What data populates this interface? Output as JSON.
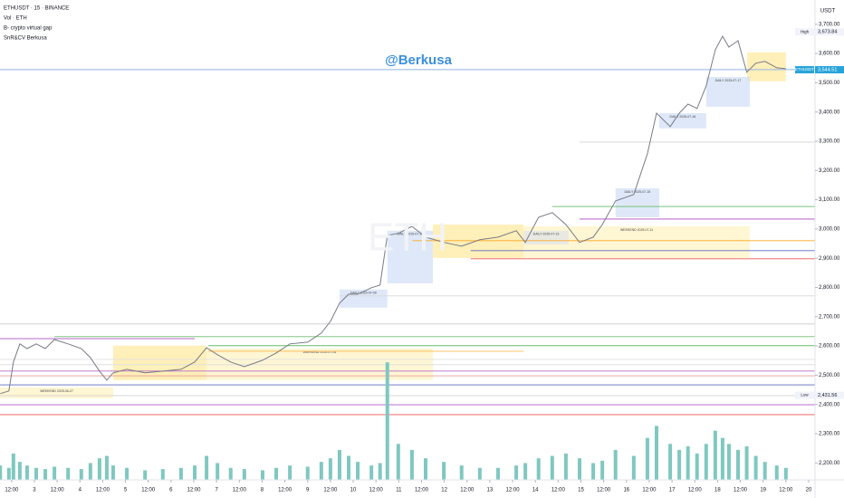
{
  "chart_data": {
    "type": "line",
    "title": "ETHUSDT · 15 · BINANCE",
    "indicators": [
      "Vol · ETH",
      "B- crypto virtual gap",
      "SnR&CV Berkusa"
    ],
    "watermark": "@Berkusa",
    "symbol_watermark": "ETH",
    "y_axis_label": "USDT",
    "xlim": [
      2.245,
      20.14
    ],
    "ylim": [
      2142,
      3783
    ],
    "y2lim": [
      0,
      400
    ],
    "xticks": [
      {
        "value": 2.5,
        "label": "12:00"
      },
      3,
      {
        "value": 3.5,
        "label": "12:00"
      },
      4,
      {
        "value": 4.5,
        "label": "12:00"
      },
      5,
      {
        "value": 5.5,
        "label": "12:00"
      },
      6,
      {
        "value": 6.5,
        "label": "12:00"
      },
      7,
      {
        "value": 7.5,
        "label": "12:00"
      },
      8,
      {
        "value": 8.5,
        "label": "12:00"
      },
      9,
      {
        "value": 9.5,
        "label": "12:00"
      },
      10,
      {
        "value": 10.5,
        "label": "12:00"
      },
      11,
      {
        "value": 11.5,
        "label": "12:00"
      },
      12,
      {
        "value": 12.5,
        "label": "12:00"
      },
      13,
      {
        "value": 13.5,
        "label": "12:00"
      },
      14,
      {
        "value": 14.5,
        "label": "12:00"
      },
      15,
      {
        "value": 15.5,
        "label": "12:00"
      },
      16,
      {
        "value": 16.5,
        "label": "12:00"
      },
      17,
      {
        "value": 17.5,
        "label": "12:00"
      },
      18,
      {
        "value": 18.5,
        "label": "12:00"
      },
      19,
      {
        "value": 19.5,
        "label": "12:00"
      },
      20
    ],
    "yticks": [
      {
        "value": 2200,
        "label": "2,200.00"
      },
      {
        "value": 2300,
        "label": "2,300.00"
      },
      {
        "value": 2400,
        "label": "2,400.00"
      },
      {
        "value": 2500,
        "label": "2,500.00"
      },
      {
        "value": 2600,
        "label": "2,600.00"
      },
      {
        "value": 2700,
        "label": "2,700.00"
      },
      {
        "value": 2800,
        "label": "2,800.00"
      },
      {
        "value": 2900,
        "label": "2,900.00"
      },
      {
        "value": 3000,
        "label": "3,000.00"
      },
      {
        "value": 3100,
        "label": "3,100.00"
      },
      {
        "value": 3200,
        "label": "3,200.00"
      },
      {
        "value": 3300,
        "label": "3,300.00"
      },
      {
        "value": 3400,
        "label": "3,400.00"
      },
      {
        "value": 3500,
        "label": "3,500.00"
      },
      {
        "value": 3600,
        "label": "3,600.00"
      },
      {
        "value": 3700,
        "label": "3,700.00"
      }
    ],
    "x": [
      2.25,
      2.44,
      2.54,
      2.68,
      2.84,
      3.04,
      3.24,
      3.44,
      3.74,
      4.03,
      4.23,
      4.43,
      4.59,
      4.73,
      5.03,
      5.43,
      5.82,
      6.22,
      6.52,
      6.78,
      7.02,
      7.31,
      7.61,
      8.01,
      8.31,
      8.61,
      9.0,
      9.3,
      9.5,
      9.7,
      9.9,
      10.1,
      10.4,
      10.59,
      10.75,
      10.99,
      11.29,
      11.59,
      11.99,
      12.38,
      12.78,
      13.18,
      13.58,
      13.78,
      14.07,
      14.37,
      14.67,
      14.97,
      15.27,
      15.47,
      15.76,
      16.16,
      16.46,
      16.66,
      16.96,
      17.16,
      17.35,
      17.55,
      17.75,
      17.95,
      18.11,
      18.25,
      18.45,
      18.64,
      18.84,
      19.04,
      19.3,
      19.5
    ],
    "series": [
      {
        "type": "line",
        "color": "#787b86",
        "values": [
          2437,
          2446,
          2545,
          2607,
          2591,
          2607,
          2591,
          2622,
          2607,
          2591,
          2560,
          2514,
          2483,
          2508,
          2520,
          2508,
          2514,
          2520,
          2545,
          2594,
          2570,
          2545,
          2529,
          2551,
          2576,
          2607,
          2613,
          2644,
          2684,
          2746,
          2777,
          2777,
          2799,
          2808,
          2978,
          2985,
          3009,
          2972,
          2954,
          2941,
          2963,
          2972,
          2994,
          2954,
          3040,
          3056,
          3015,
          2954,
          2972,
          3015,
          3096,
          3118,
          3257,
          3396,
          3350,
          3396,
          3427,
          3412,
          3489,
          3613,
          3659,
          3622,
          3644,
          3536,
          3567,
          3573,
          3551,
          3548
        ]
      },
      {
        "type": "bar",
        "axis": "y2",
        "color": "#7fc8c0",
        "values": [
          12,
          10,
          22,
          15,
          12,
          10,
          9,
          11,
          10,
          9,
          14,
          18,
          20,
          12,
          10,
          8,
          9,
          10,
          12,
          20,
          14,
          10,
          9,
          8,
          10,
          12,
          11,
          15,
          18,
          25,
          20,
          15,
          12,
          14,
          98,
          30,
          25,
          18,
          15,
          12,
          10,
          10,
          12,
          14,
          18,
          20,
          22,
          18,
          14,
          16,
          25,
          20,
          35,
          45,
          30,
          25,
          28,
          22,
          30,
          41,
          35,
          30,
          25,
          28,
          20,
          15,
          12,
          10
        ]
      }
    ],
    "zones": [
      {
        "x0": 2.245,
        "x1": 4.73,
        "y0": 2421,
        "y1": 2458,
        "color": "#fff3c4",
        "label": "WEEKEND 2025-06-27"
      },
      {
        "x0": 4.73,
        "x1": 6.78,
        "y0": 2483,
        "y1": 2601,
        "color": "#ffeaa0"
      },
      {
        "x0": 6.78,
        "x1": 11.75,
        "y0": 2483,
        "y1": 2591,
        "color": "#fff3c4",
        "label": "WEEKEND 2025-07-04"
      },
      {
        "x0": 11.75,
        "x1": 13.74,
        "y0": 2901,
        "y1": 3015,
        "color": "#ffeaa0"
      },
      {
        "x0": 13.74,
        "x1": 18.71,
        "y0": 2901,
        "y1": 3009,
        "color": "#fff3c4",
        "label": "WEEKEND 2025-07-11"
      },
      {
        "x0": 18.65,
        "x1": 19.5,
        "y0": 3505,
        "y1": 3604,
        "color": "#ffeaa0"
      },
      {
        "x0": 10.75,
        "x1": 11.75,
        "y0": 2814,
        "y1": 2994,
        "color": "#d3e0f5",
        "label": "DAILY 2025-07-10"
      },
      {
        "x0": 9.7,
        "x1": 10.75,
        "y0": 2731,
        "y1": 2793,
        "color": "#d3e0f5",
        "label": "DAILY 2025-07-09"
      },
      {
        "x0": 13.74,
        "x1": 14.73,
        "y0": 2947,
        "y1": 2994,
        "color": "#e2e4ea",
        "label": "DAILY 2025-07-13"
      },
      {
        "x0": 15.76,
        "x1": 16.72,
        "y0": 3040,
        "y1": 3139,
        "color": "#d3e0f5",
        "label": "DAILY 2025-07-15"
      },
      {
        "x0": 16.72,
        "x1": 17.75,
        "y0": 3344,
        "y1": 3396,
        "color": "#d3e0f5",
        "label": "DAILY 2025-07-16"
      },
      {
        "x0": 17.75,
        "x1": 18.71,
        "y0": 3418,
        "y1": 3520,
        "color": "#d3e0f5",
        "label": "DAILY 2025-07-17"
      }
    ],
    "levels": [
      {
        "price": 3545,
        "x0": 2.245,
        "x1": 20.14,
        "color": "#90b4e8"
      },
      {
        "price": 3297,
        "x0": 14.97,
        "x1": 20.14,
        "color": "#d0d0d0"
      },
      {
        "price": 3077,
        "x0": 14.37,
        "x1": 20.14,
        "color": "#66bb6a"
      },
      {
        "price": 3034,
        "x0": 14.97,
        "x1": 20.14,
        "color": "#ab47bc"
      },
      {
        "price": 2960,
        "x0": 11.3,
        "x1": 20.14,
        "color": "#ffa726"
      },
      {
        "price": 2926,
        "x0": 12.58,
        "x1": 20.14,
        "color": "#5c6bc0"
      },
      {
        "price": 2898,
        "x0": 12.58,
        "x1": 20.14,
        "color": "#ef5350"
      },
      {
        "price": 2771,
        "x0": 9.7,
        "x1": 20.14,
        "color": "#d8d8d8"
      },
      {
        "price": 2675,
        "x0": 2.245,
        "x1": 20.14,
        "color": "#c8c8c8"
      },
      {
        "price": 2632,
        "x0": 3.44,
        "x1": 20.14,
        "color": "#81c784"
      },
      {
        "price": 2625,
        "x0": 2.245,
        "x1": 6.52,
        "color": "#ba68c8"
      },
      {
        "price": 2601,
        "x0": 6.82,
        "x1": 20.14,
        "color": "#66bb6a"
      },
      {
        "price": 2582,
        "x0": 6.82,
        "x1": 13.74,
        "color": "#ffb74d"
      },
      {
        "price": 2554,
        "x0": 2.245,
        "x1": 20.14,
        "color": "#e0e0e0"
      },
      {
        "price": 2536,
        "x0": 2.245,
        "x1": 20.14,
        "color": "#e0e0e0"
      },
      {
        "price": 2514,
        "x0": 2.245,
        "x1": 20.14,
        "color": "#ba68c8"
      },
      {
        "price": 2498,
        "x0": 2.245,
        "x1": 20.14,
        "color": "#ef9a9a"
      },
      {
        "price": 2467,
        "x0": 2.245,
        "x1": 20.14,
        "color": "#5c6bc0"
      },
      {
        "price": 2430,
        "x0": 2.245,
        "x1": 20.14,
        "color": "#d0d0d0"
      },
      {
        "price": 2399,
        "x0": 2.245,
        "x1": 20.14,
        "color": "#ba68c8"
      },
      {
        "price": 2365,
        "x0": 2.245,
        "x1": 20.14,
        "color": "#ef5350"
      }
    ],
    "price_tags": [
      {
        "label": "High",
        "value": 3673.84,
        "text": "3,673.84",
        "color": "#f0f3fa",
        "text_color": "#131722"
      },
      {
        "label": "ETHUSDT",
        "value": 3544.51,
        "text": "3,544.51",
        "color": "#26a4d9",
        "text_color": "#ffffff"
      },
      {
        "label": "Low",
        "value": 2431.56,
        "text": "2,431.56",
        "color": "#f0f3fa",
        "text_color": "#131722"
      }
    ]
  }
}
